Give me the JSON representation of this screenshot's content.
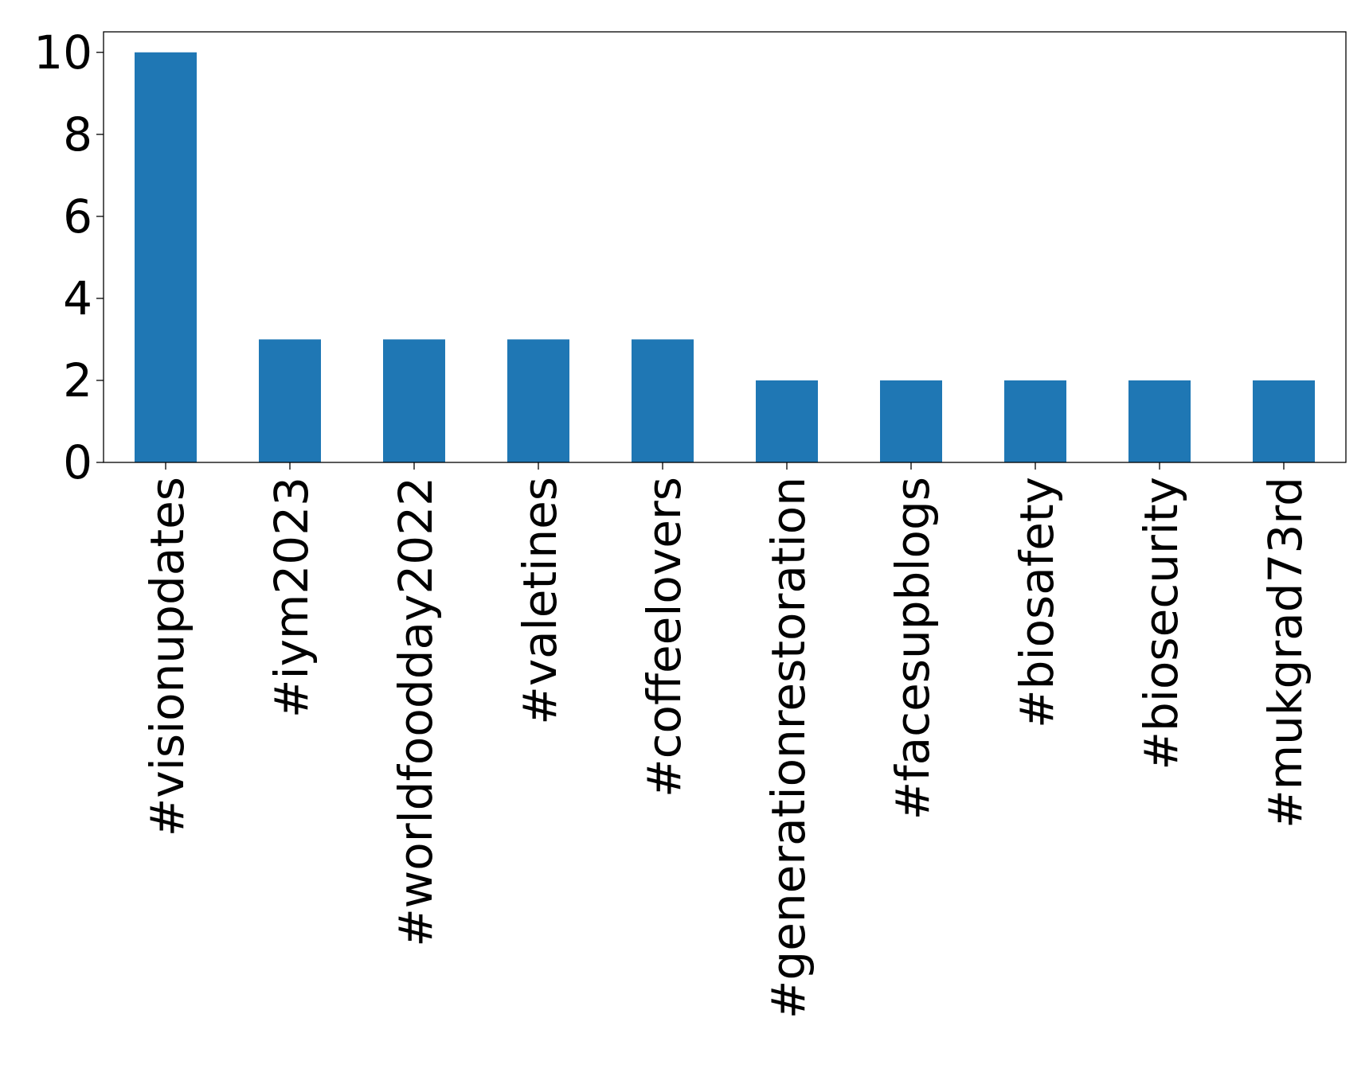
{
  "chart_data": {
    "type": "bar",
    "title": "",
    "xlabel": "",
    "ylabel": "",
    "categories": [
      "#visionupdates",
      "#iym2023",
      "#worldfoodday2022",
      "#valetines",
      "#coffeelovers",
      "#generationrestoration",
      "#facesupblogs",
      "#biosafety",
      "#biosecurity",
      "#mukgrad73rd"
    ],
    "values": [
      10,
      3,
      3,
      3,
      3,
      2,
      2,
      2,
      2,
      2
    ],
    "ylim": [
      0,
      10.5
    ],
    "yticks": [
      0,
      2,
      4,
      6,
      8,
      10
    ],
    "ytick_labels": [
      "0",
      "2",
      "4",
      "6",
      "8",
      "10"
    ],
    "grid": false,
    "legend": "none",
    "colors": {
      "bar": "#1f77b4",
      "axis": "#000000",
      "text": "#000000",
      "background": "#ffffff"
    }
  }
}
